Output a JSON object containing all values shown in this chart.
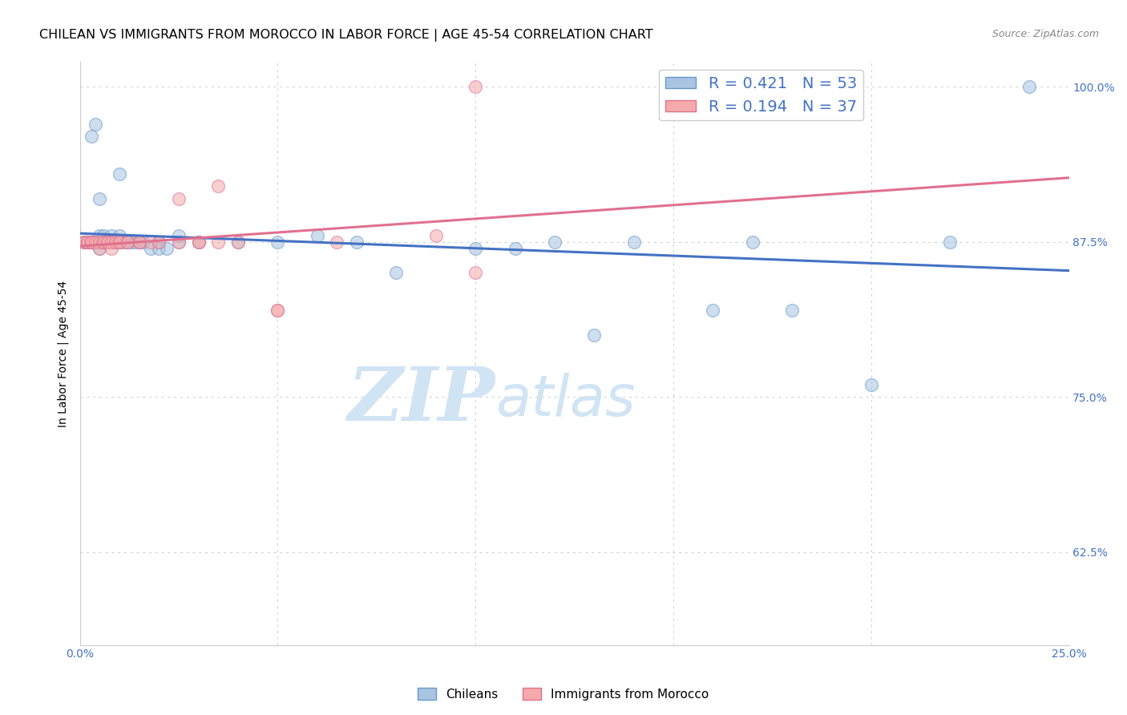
{
  "title": "CHILEAN VS IMMIGRANTS FROM MOROCCO IN LABOR FORCE | AGE 45-54 CORRELATION CHART",
  "source": "Source: ZipAtlas.com",
  "ylabel": "In Labor Force | Age 45-54",
  "x_min": 0.0,
  "x_max": 0.25,
  "y_min": 0.55,
  "y_max": 1.02,
  "x_ticks": [
    0.0,
    0.05,
    0.1,
    0.15,
    0.2,
    0.25
  ],
  "y_ticks": [
    0.625,
    0.75,
    0.875,
    1.0
  ],
  "y_tick_labels": [
    "62.5%",
    "75.0%",
    "87.5%",
    "100.0%"
  ],
  "blue_scatter_color": "#A8C4E0",
  "blue_edge_color": "#6699CC",
  "pink_scatter_color": "#F4AAAA",
  "pink_edge_color": "#E07090",
  "blue_line_color": "#4472C4",
  "pink_line_color": "#E07090",
  "legend_R_color": "#4472C4",
  "legend_N_color": "#4472C4",
  "watermark_color": "#D0E4F4",
  "tick_color": "#4472C4",
  "source_color": "#888888",
  "blue_scatter_x": [
    0.001,
    0.002,
    0.003,
    0.003,
    0.004,
    0.004,
    0.005,
    0.005,
    0.005,
    0.006,
    0.006,
    0.006,
    0.007,
    0.007,
    0.008,
    0.008,
    0.009,
    0.009,
    0.01,
    0.01,
    0.011,
    0.012,
    0.013,
    0.014,
    0.015,
    0.016,
    0.018,
    0.02,
    0.02,
    0.022,
    0.025,
    0.025,
    0.03,
    0.04,
    0.05,
    0.06,
    0.07,
    0.08,
    0.1,
    0.11,
    0.12,
    0.13,
    0.14,
    0.16,
    0.17,
    0.18,
    0.2,
    0.22,
    0.24,
    0.005,
    0.003,
    0.004,
    0.01
  ],
  "blue_scatter_y": [
    0.875,
    0.875,
    0.875,
    0.875,
    0.875,
    0.875,
    0.875,
    0.87,
    0.88,
    0.875,
    0.875,
    0.88,
    0.875,
    0.875,
    0.875,
    0.88,
    0.875,
    0.875,
    0.875,
    0.88,
    0.875,
    0.875,
    0.875,
    0.875,
    0.875,
    0.875,
    0.87,
    0.875,
    0.87,
    0.87,
    0.875,
    0.88,
    0.875,
    0.875,
    0.875,
    0.88,
    0.875,
    0.85,
    0.87,
    0.87,
    0.875,
    0.8,
    0.875,
    0.82,
    0.875,
    0.82,
    0.76,
    0.875,
    1.0,
    0.91,
    0.96,
    0.97,
    0.93
  ],
  "pink_scatter_x": [
    0.001,
    0.001,
    0.002,
    0.002,
    0.003,
    0.003,
    0.004,
    0.005,
    0.005,
    0.006,
    0.006,
    0.007,
    0.007,
    0.008,
    0.008,
    0.009,
    0.01,
    0.01,
    0.012,
    0.012,
    0.015,
    0.015,
    0.018,
    0.02,
    0.025,
    0.03,
    0.035,
    0.04,
    0.05,
    0.065,
    0.09,
    0.1,
    0.025,
    0.03,
    0.035,
    0.05,
    0.1
  ],
  "pink_scatter_y": [
    0.875,
    0.875,
    0.875,
    0.875,
    0.875,
    0.875,
    0.875,
    0.875,
    0.87,
    0.875,
    0.875,
    0.875,
    0.875,
    0.875,
    0.87,
    0.875,
    0.875,
    0.875,
    0.875,
    0.875,
    0.875,
    0.875,
    0.875,
    0.875,
    0.875,
    0.875,
    0.875,
    0.875,
    0.82,
    0.875,
    0.88,
    1.0,
    0.91,
    0.875,
    0.92,
    0.82,
    0.85
  ],
  "title_fontsize": 11.5,
  "axis_label_fontsize": 10,
  "tick_fontsize": 10,
  "legend_fontsize": 14,
  "source_fontsize": 9,
  "scatter_size": 130,
  "scatter_alpha": 0.55,
  "line_width": 2.2
}
